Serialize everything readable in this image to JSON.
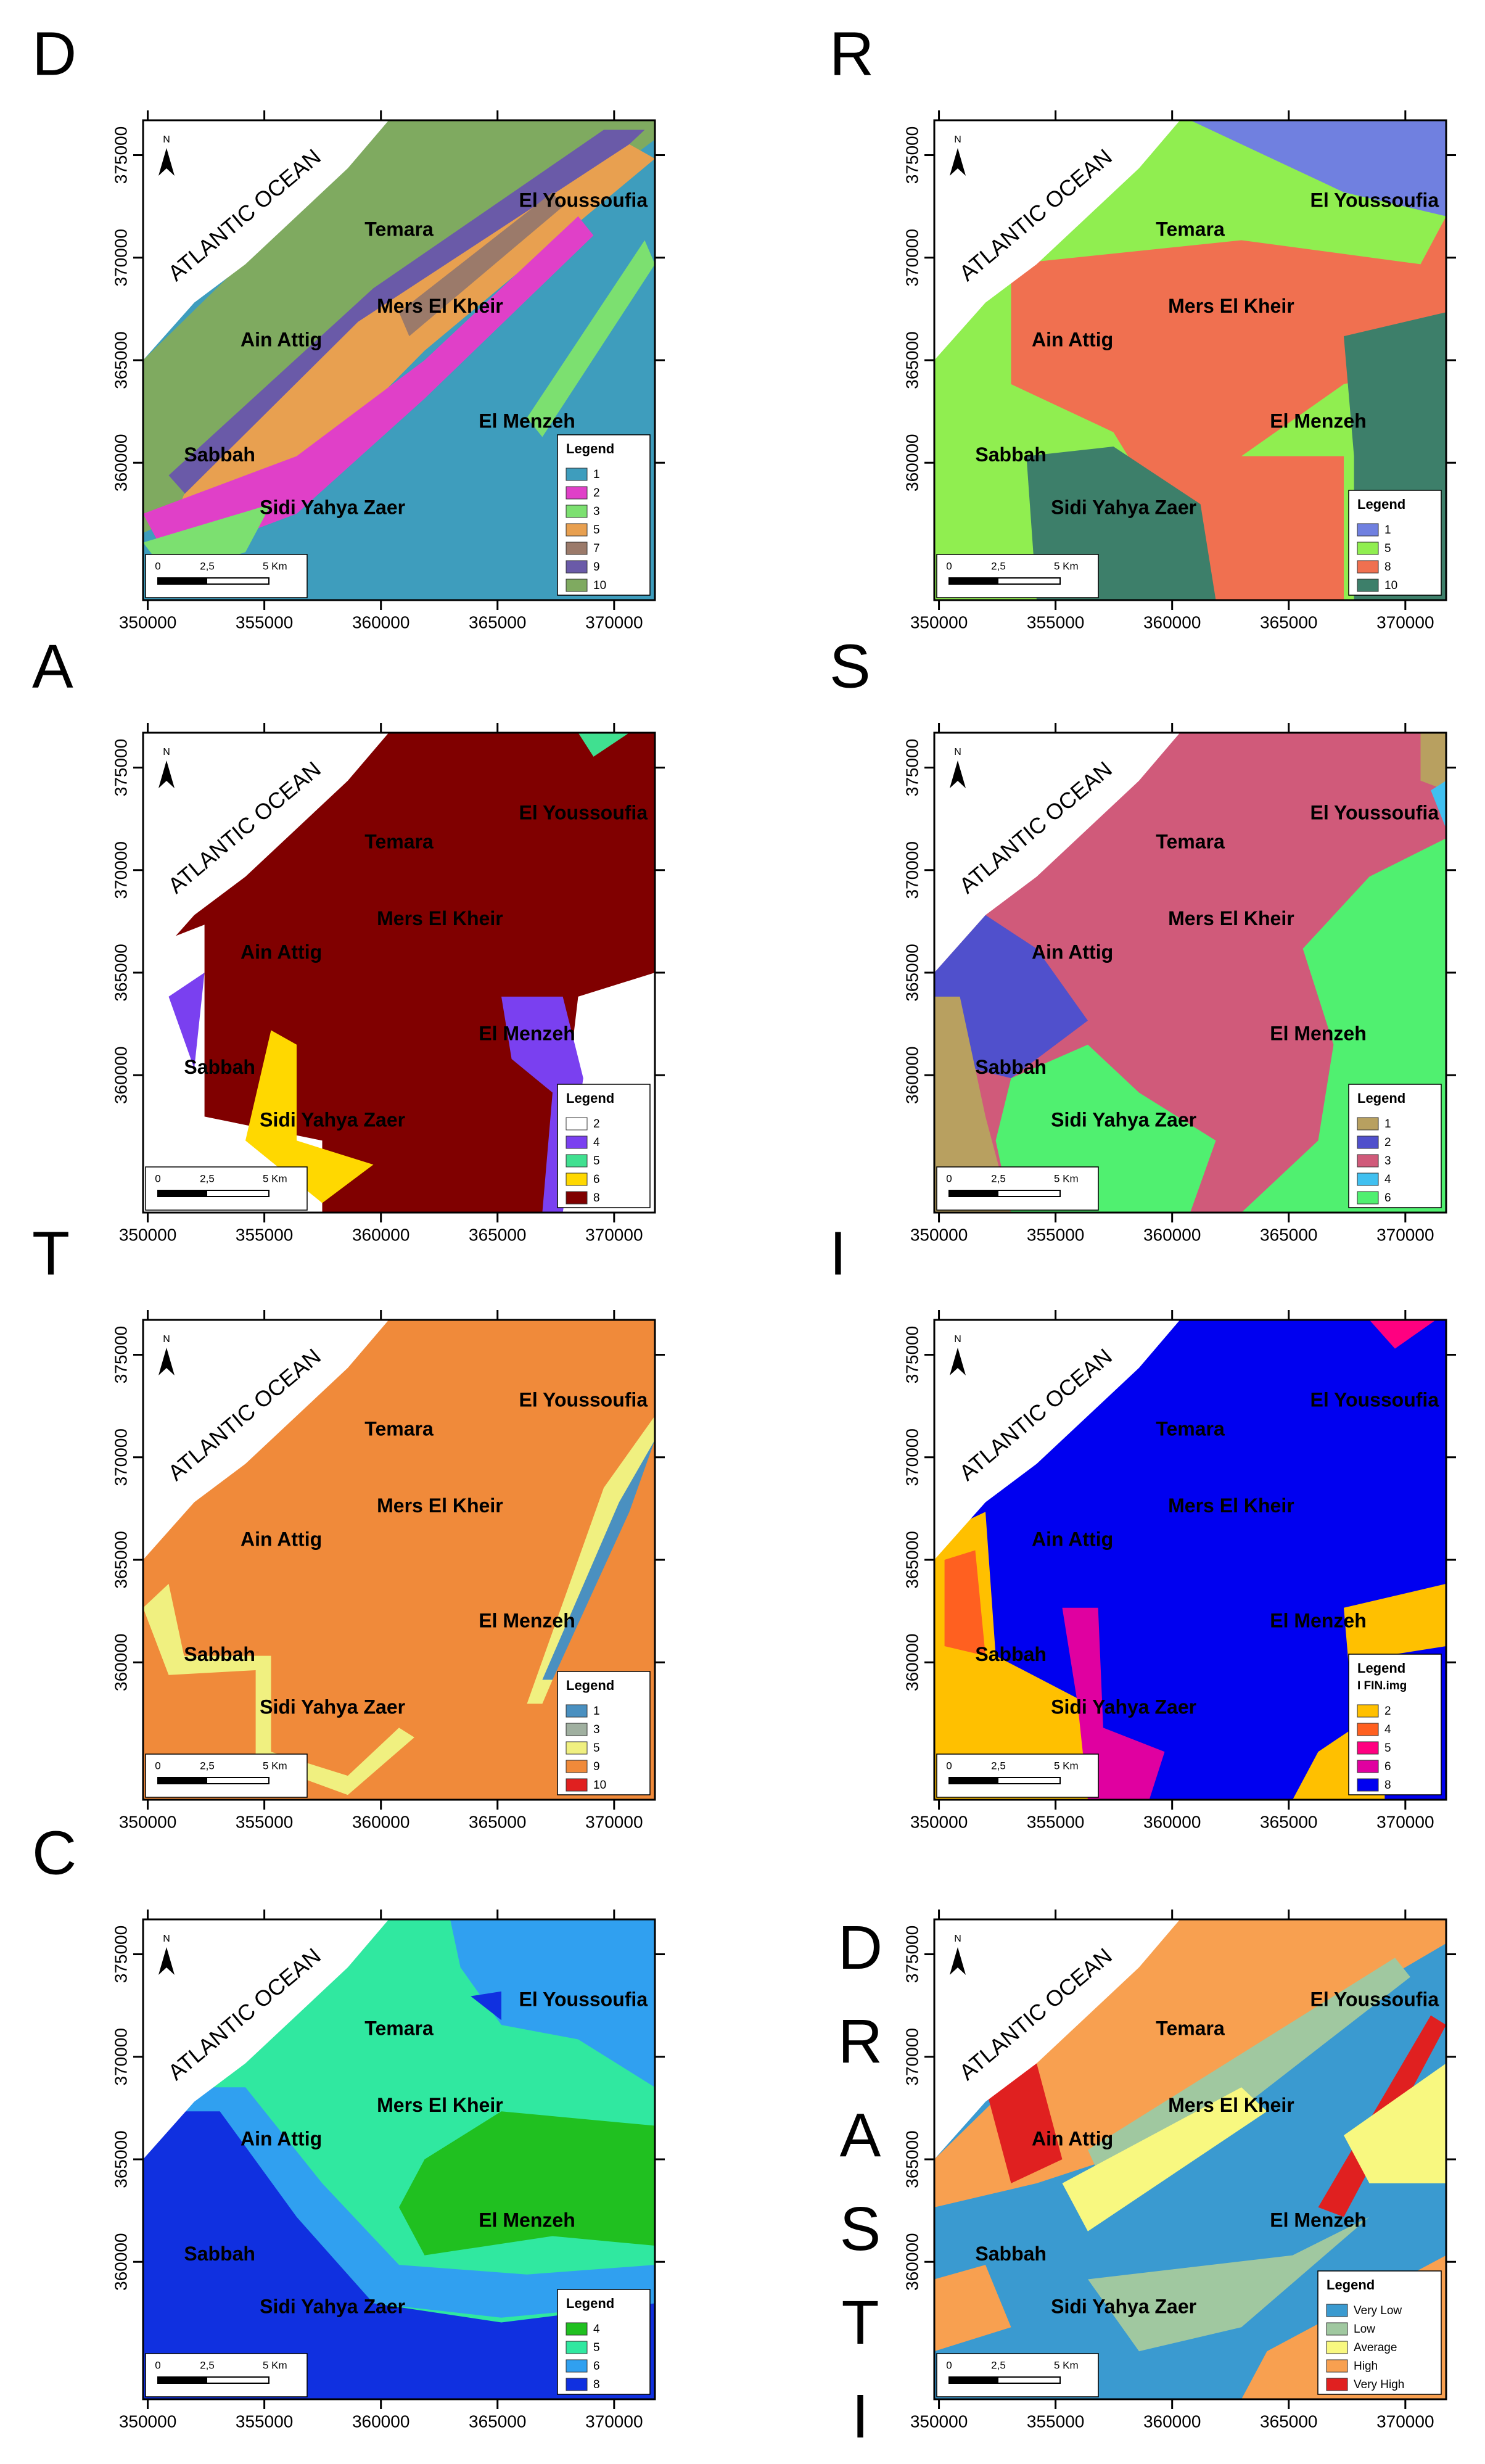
{
  "x_ticks": [
    350000,
    355000,
    360000,
    365000,
    370000
  ],
  "y_ticks": [
    360000,
    365000,
    370000,
    375000
  ],
  "xlim": [
    349800,
    371750
  ],
  "ylim": [
    353300,
    376700
  ],
  "places": [
    "ATLANTIC OCEAN",
    "Temara",
    "El Youssoufia",
    "Mers El Kheir",
    "Ain Attig",
    "El Menzeh",
    "Sabbah",
    "Sidi Yahya Zaer"
  ],
  "scale_bar": [
    "0",
    "2,5",
    "5 Km"
  ],
  "north": "N",
  "panels": [
    {
      "letter": "D",
      "legend_title": "Legend",
      "background": 0,
      "legend": [
        {
          "label": "1",
          "color": "#3e9dbd"
        },
        {
          "label": "2",
          "color": "#e040c8"
        },
        {
          "label": "3",
          "color": "#7ce070"
        },
        {
          "label": "5",
          "color": "#e8a050"
        },
        {
          "label": "7",
          "color": "#9b7a6a"
        },
        {
          "label": "9",
          "color": "#6a5aa8"
        },
        {
          "label": "10",
          "color": "#7faa60"
        }
      ]
    },
    {
      "letter": "R",
      "legend_title": "Legend",
      "background": 1,
      "legend": [
        {
          "label": "1",
          "color": "#7080e0"
        },
        {
          "label": "5",
          "color": "#90ee50"
        },
        {
          "label": "8",
          "color": "#f07050"
        },
        {
          "label": "10",
          "color": "#3d7f6a"
        }
      ]
    },
    {
      "letter": "A",
      "legend_title": "Legend",
      "background": 4,
      "legend": [
        {
          "label": "2",
          "color": "#ffffff"
        },
        {
          "label": "4",
          "color": "#7a40f0"
        },
        {
          "label": "5",
          "color": "#40e090"
        },
        {
          "label": "6",
          "color": "#ffd800"
        },
        {
          "label": "8",
          "color": "#800000"
        }
      ]
    },
    {
      "letter": "S",
      "legend_title": "Legend",
      "background": 2,
      "legend": [
        {
          "label": "1",
          "color": "#b8a060"
        },
        {
          "label": "2",
          "color": "#5050cc"
        },
        {
          "label": "3",
          "color": "#d05a7a"
        },
        {
          "label": "4",
          "color": "#40c0f0"
        },
        {
          "label": "6",
          "color": "#50f070"
        }
      ]
    },
    {
      "letter": "T",
      "legend_title": "Legend",
      "background": 3,
      "legend": [
        {
          "label": "1",
          "color": "#4a90c0"
        },
        {
          "label": "3",
          "color": "#a0b0a0"
        },
        {
          "label": "5",
          "color": "#f0f080"
        },
        {
          "label": "9",
          "color": "#f08a3a"
        },
        {
          "label": "10",
          "color": "#e02020"
        }
      ]
    },
    {
      "letter": "I",
      "legend_title": "Legend",
      "legend_subtitle": "I FIN.img",
      "background": 4,
      "legend": [
        {
          "label": "2",
          "color": "#ffc000"
        },
        {
          "label": "4",
          "color": "#ff6020"
        },
        {
          "label": "5",
          "color": "#ff0080"
        },
        {
          "label": "6",
          "color": "#e000a0"
        },
        {
          "label": "8",
          "color": "#0000f0"
        }
      ]
    },
    {
      "letter": "C",
      "legend_title": "Legend",
      "background": 1,
      "legend": [
        {
          "label": "4",
          "color": "#20c020"
        },
        {
          "label": "5",
          "color": "#30e8a0"
        },
        {
          "label": "6",
          "color": "#30a0f0"
        },
        {
          "label": "8",
          "color": "#1030e0"
        }
      ]
    },
    {
      "letter": "DRASTIC",
      "legend_title": "Legend",
      "background": 0,
      "legend": [
        {
          "label": "Very Low",
          "color": "#3a9ad0"
        },
        {
          "label": "Low",
          "color": "#a0c8a0"
        },
        {
          "label": "Average",
          "color": "#f8f880"
        },
        {
          "label": "High",
          "color": "#f8a050"
        },
        {
          "label": "Very High",
          "color": "#e02020"
        }
      ]
    }
  ]
}
